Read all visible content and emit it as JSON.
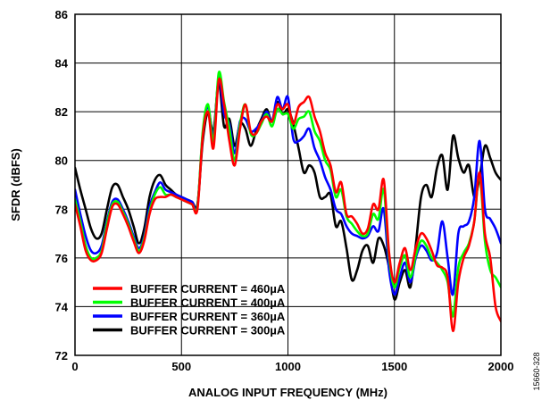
{
  "figure_id": "15660-328",
  "chart_data": {
    "type": "line",
    "xlabel": "ANALOG INPUT FREQUENCY (MHz)",
    "ylabel": "SFDR (dBFS)",
    "xlim": [
      0,
      2000
    ],
    "ylim": [
      72,
      86
    ],
    "xticks": [
      0,
      500,
      1000,
      1500,
      2000
    ],
    "yticks": [
      72,
      74,
      76,
      78,
      80,
      82,
      84,
      86
    ],
    "grid": true,
    "legend_position": "bottom-left",
    "series": [
      {
        "name": "BUFFER CURRENT = 460µA",
        "color": "#ff0000",
        "x": [
          0,
          25,
          50,
          75,
          100,
          125,
          150,
          175,
          200,
          225,
          250,
          275,
          300,
          325,
          350,
          375,
          400,
          425,
          450,
          475,
          500,
          525,
          550,
          575,
          600,
          625,
          650,
          675,
          700,
          725,
          750,
          775,
          800,
          825,
          850,
          875,
          900,
          925,
          950,
          975,
          1000,
          1025,
          1050,
          1075,
          1100,
          1125,
          1150,
          1175,
          1200,
          1225,
          1250,
          1275,
          1300,
          1325,
          1350,
          1375,
          1400,
          1425,
          1450,
          1475,
          1500,
          1525,
          1550,
          1575,
          1600,
          1625,
          1650,
          1675,
          1700,
          1725,
          1750,
          1775,
          1800,
          1825,
          1850,
          1875,
          1900,
          1925,
          1950,
          1975,
          2000
        ],
        "y": [
          78.2,
          77.3,
          76.3,
          75.9,
          75.9,
          76.2,
          77.2,
          78.1,
          78.2,
          77.8,
          77.3,
          76.7,
          76.2,
          76.7,
          77.8,
          78.4,
          78.5,
          78.5,
          78.6,
          78.5,
          78.4,
          78.3,
          78.2,
          78.0,
          81.0,
          82.0,
          80.5,
          83.3,
          82.3,
          80.8,
          79.8,
          81.3,
          82.3,
          81.2,
          81.1,
          81.6,
          81.8,
          81.6,
          82.3,
          82.1,
          82.3,
          81.5,
          82.2,
          82.4,
          82.6,
          81.8,
          81.2,
          80.3,
          79.8,
          78.7,
          79.1,
          77.8,
          77.7,
          77.4,
          77.0,
          77.2,
          78.2,
          78.0,
          79.2,
          76.2,
          75.0,
          75.8,
          76.4,
          75.5,
          76.4,
          77.0,
          76.8,
          76.3,
          75.7,
          75.6,
          75.2,
          73.0,
          75.0,
          76.0,
          76.5,
          77.5,
          79.5,
          77.0,
          76.0,
          74.0,
          73.4
        ]
      },
      {
        "name": "BUFFER CURRENT = 400µA",
        "color": "#00ff00",
        "x": [
          0,
          25,
          50,
          75,
          100,
          125,
          150,
          175,
          200,
          225,
          250,
          275,
          300,
          325,
          350,
          375,
          400,
          425,
          450,
          475,
          500,
          525,
          550,
          575,
          600,
          625,
          650,
          675,
          700,
          725,
          750,
          775,
          800,
          825,
          850,
          875,
          900,
          925,
          950,
          975,
          1000,
          1025,
          1050,
          1075,
          1100,
          1125,
          1150,
          1175,
          1200,
          1225,
          1250,
          1275,
          1300,
          1325,
          1350,
          1375,
          1400,
          1425,
          1450,
          1475,
          1500,
          1525,
          1550,
          1575,
          1600,
          1625,
          1650,
          1675,
          1700,
          1725,
          1750,
          1775,
          1800,
          1825,
          1850,
          1875,
          1900,
          1925,
          1950,
          1975,
          2000
        ],
        "y": [
          78.4,
          77.5,
          76.5,
          76.0,
          76.0,
          76.3,
          77.4,
          78.2,
          78.3,
          77.9,
          77.4,
          76.8,
          76.3,
          76.8,
          77.9,
          78.6,
          78.9,
          78.6,
          78.6,
          78.5,
          78.4,
          78.3,
          78.2,
          78.1,
          81.2,
          82.3,
          80.8,
          83.6,
          82.4,
          81.3,
          80.0,
          81.5,
          82.3,
          81.1,
          81.1,
          81.5,
          81.9,
          81.4,
          82.1,
          81.9,
          81.9,
          81.3,
          81.7,
          81.8,
          82.0,
          81.2,
          80.8,
          80.0,
          79.6,
          78.5,
          78.8,
          77.7,
          77.4,
          77.1,
          76.9,
          77.0,
          77.8,
          77.6,
          78.8,
          76.0,
          74.8,
          75.6,
          76.1,
          75.2,
          76.1,
          76.7,
          76.5,
          76.0,
          75.8,
          75.5,
          75.0,
          73.6,
          75.6,
          76.2,
          76.6,
          77.5,
          79.4,
          76.7,
          75.5,
          75.2,
          74.8
        ]
      },
      {
        "name": "BUFFER CURRENT = 360µA",
        "color": "#0000ff",
        "x": [
          0,
          25,
          50,
          75,
          100,
          125,
          150,
          175,
          200,
          225,
          250,
          275,
          300,
          325,
          350,
          375,
          400,
          425,
          450,
          475,
          500,
          525,
          550,
          575,
          600,
          625,
          650,
          675,
          700,
          725,
          750,
          775,
          800,
          825,
          850,
          875,
          900,
          925,
          950,
          975,
          1000,
          1025,
          1050,
          1075,
          1100,
          1125,
          1150,
          1175,
          1200,
          1225,
          1250,
          1275,
          1300,
          1325,
          1350,
          1375,
          1400,
          1425,
          1450,
          1475,
          1500,
          1525,
          1550,
          1575,
          1600,
          1625,
          1650,
          1675,
          1700,
          1725,
          1750,
          1775,
          1800,
          1825,
          1850,
          1875,
          1900,
          1925,
          1950,
          1975,
          2000
        ],
        "y": [
          78.8,
          77.8,
          76.9,
          76.3,
          76.2,
          76.5,
          77.5,
          78.3,
          78.4,
          78.0,
          77.5,
          76.9,
          76.4,
          76.9,
          78.1,
          78.7,
          79.1,
          78.8,
          78.7,
          78.6,
          78.5,
          78.4,
          78.3,
          78.1,
          81.1,
          82.2,
          81.0,
          83.4,
          81.9,
          81.5,
          80.3,
          81.6,
          81.7,
          81.2,
          81.3,
          81.6,
          82.0,
          81.6,
          82.6,
          82.1,
          82.6,
          80.9,
          80.8,
          81.0,
          81.3,
          80.5,
          80.0,
          79.3,
          78.8,
          78.0,
          77.8,
          77.3,
          77.0,
          76.9,
          76.8,
          76.9,
          77.3,
          77.1,
          78.0,
          75.5,
          74.5,
          75.2,
          75.8,
          75.0,
          76.0,
          76.5,
          76.3,
          75.9,
          76.2,
          77.5,
          76.0,
          74.5,
          77.0,
          77.3,
          77.5,
          78.5,
          80.8,
          78.0,
          77.6,
          77.2,
          76.6
        ]
      },
      {
        "name": "BUFFER CURRENT = 300µA",
        "color": "#000000",
        "x": [
          0,
          25,
          50,
          75,
          100,
          125,
          150,
          175,
          200,
          225,
          250,
          275,
          300,
          325,
          350,
          375,
          400,
          425,
          450,
          475,
          500,
          525,
          550,
          575,
          600,
          625,
          650,
          675,
          700,
          725,
          750,
          775,
          800,
          825,
          850,
          875,
          900,
          925,
          950,
          975,
          1000,
          1025,
          1050,
          1075,
          1100,
          1125,
          1150,
          1175,
          1200,
          1225,
          1250,
          1275,
          1300,
          1325,
          1350,
          1375,
          1400,
          1425,
          1450,
          1475,
          1500,
          1525,
          1550,
          1575,
          1600,
          1625,
          1650,
          1675,
          1700,
          1725,
          1750,
          1775,
          1800,
          1825,
          1850,
          1875,
          1900,
          1925,
          1950,
          1975,
          2000
        ],
        "y": [
          79.7,
          78.8,
          78.0,
          77.2,
          76.8,
          77.0,
          78.0,
          78.9,
          79.0,
          78.5,
          78.0,
          77.3,
          76.6,
          77.2,
          78.5,
          79.2,
          79.4,
          79.0,
          78.8,
          78.6,
          78.5,
          78.4,
          78.3,
          78.2,
          80.8,
          82.0,
          81.2,
          83.2,
          81.4,
          81.7,
          80.6,
          81.5,
          81.3,
          80.6,
          81.2,
          81.7,
          82.1,
          81.6,
          82.4,
          81.9,
          82.1,
          81.5,
          80.5,
          79.5,
          79.8,
          79.5,
          78.5,
          78.5,
          78.6,
          77.3,
          77.5,
          76.4,
          75.1,
          75.5,
          76.3,
          76.5,
          75.8,
          76.8,
          76.5,
          75.6,
          74.3,
          75.0,
          75.5,
          74.8,
          76.5,
          78.5,
          79.0,
          78.5,
          79.7,
          80.2,
          78.8,
          81.0,
          80.1,
          79.5,
          79.8,
          78.5,
          79.3,
          80.6,
          80.1,
          79.5,
          79.2
        ]
      }
    ]
  }
}
